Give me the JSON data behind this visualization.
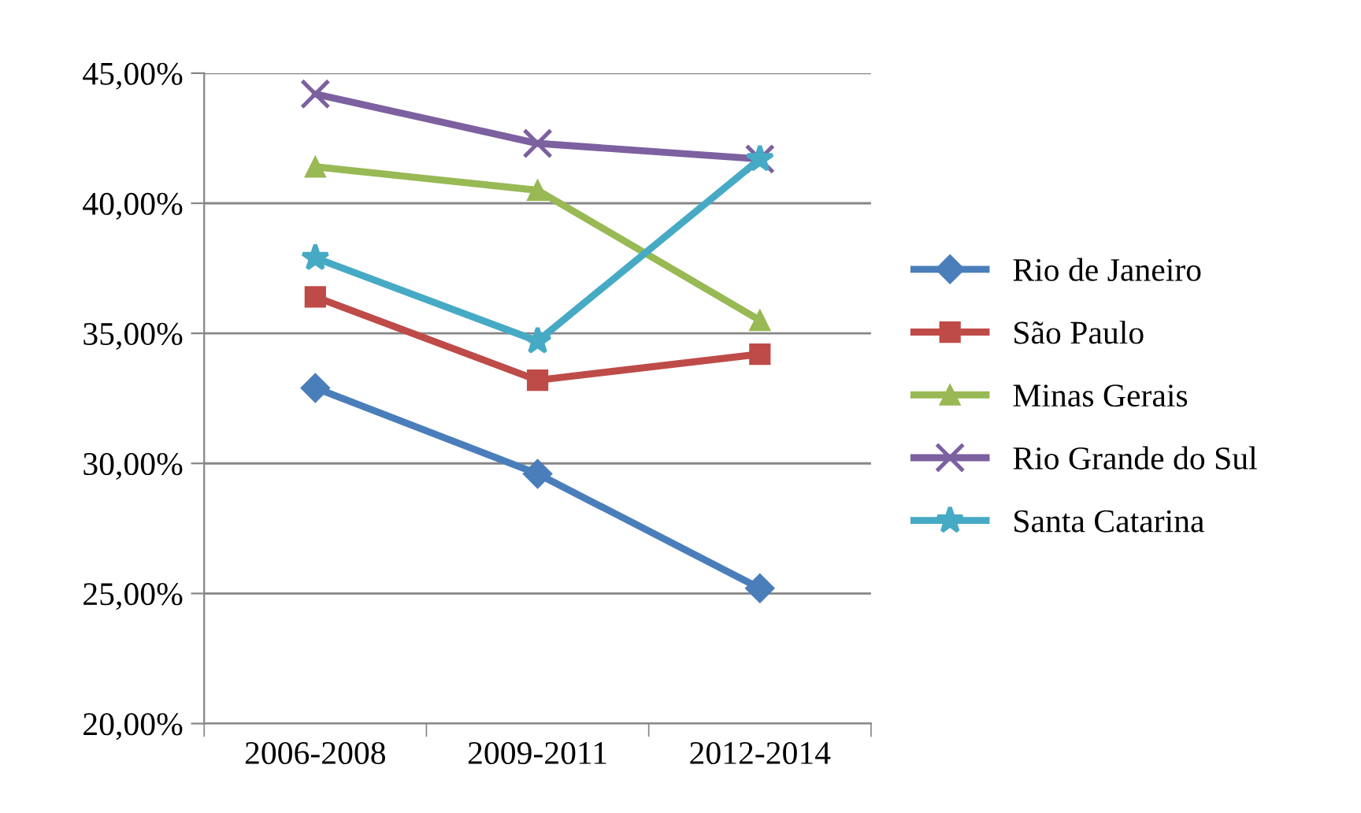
{
  "chart_data": {
    "type": "line",
    "categories": [
      "2006-2008",
      "2009-2011",
      "2012-2014"
    ],
    "series": [
      {
        "name": "Rio de Janeiro",
        "color": "#4a7ebb",
        "marker": "diamond",
        "values": [
          32.9,
          29.6,
          25.2
        ]
      },
      {
        "name": "São Paulo",
        "color": "#be4b48",
        "marker": "square",
        "values": [
          36.4,
          33.2,
          34.2
        ]
      },
      {
        "name": "Minas Gerais",
        "color": "#98b954",
        "marker": "triangle",
        "values": [
          41.4,
          40.5,
          35.5
        ]
      },
      {
        "name": "Rio Grande do Sul",
        "color": "#7d60a0",
        "marker": "cross",
        "values": [
          44.2,
          42.3,
          41.7
        ]
      },
      {
        "name": "Santa Catarina",
        "color": "#46aac5",
        "marker": "star",
        "values": [
          37.9,
          34.7,
          41.7
        ]
      }
    ],
    "ylim": [
      20,
      45
    ],
    "yticks": [
      {
        "value": 20,
        "label": "20,00%"
      },
      {
        "value": 25,
        "label": "25,00%"
      },
      {
        "value": 30,
        "label": "30,00%"
      },
      {
        "value": 35,
        "label": "35,00%"
      },
      {
        "value": 40,
        "label": "40,00%"
      },
      {
        "value": 45,
        "label": "45,00%"
      }
    ],
    "grid": "y",
    "legend": "right",
    "line_style": "solid"
  }
}
